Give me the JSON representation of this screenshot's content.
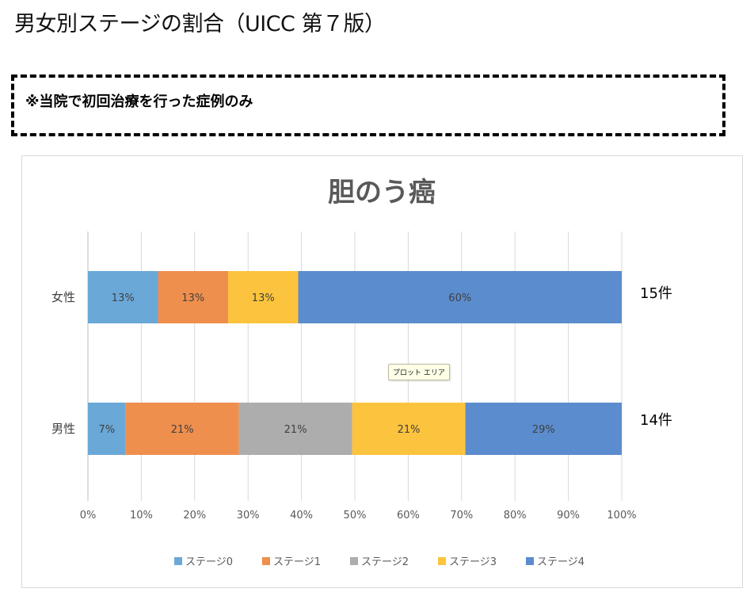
{
  "page": {
    "heading": "男女別ステージの割合（UICC 第７版）",
    "note": "※当院で初回治療を行った症例のみ",
    "tooltip": "プロット エリア"
  },
  "chart_data": {
    "type": "bar",
    "orientation": "horizontal",
    "stacked": "percent",
    "title": "胆のう癌",
    "categories": [
      "女性",
      "男性"
    ],
    "category_totals": [
      "15件",
      "14件"
    ],
    "series": [
      {
        "name": "ステージ0",
        "color": "#6aa8d8",
        "values": [
          13,
          7
        ],
        "labels": [
          "13%",
          "7%"
        ]
      },
      {
        "name": "ステージ1",
        "color": "#ef8f4d",
        "values": [
          13,
          21
        ],
        "labels": [
          "13%",
          "21%"
        ]
      },
      {
        "name": "ステージ2",
        "color": "#adadad",
        "values": [
          0,
          21
        ],
        "labels": [
          "",
          "21%"
        ]
      },
      {
        "name": "ステージ3",
        "color": "#fcc43e",
        "values": [
          13,
          21
        ],
        "labels": [
          "13%",
          "21%"
        ]
      },
      {
        "name": "ステージ4",
        "color": "#5b8ccd",
        "values": [
          60,
          29
        ],
        "labels": [
          "60%",
          "29%"
        ]
      }
    ],
    "xlim": [
      0,
      100
    ],
    "x_ticks": [
      "0%",
      "10%",
      "20%",
      "30%",
      "40%",
      "50%",
      "60%",
      "70%",
      "80%",
      "90%",
      "100%"
    ],
    "grid": true,
    "legend_position": "bottom"
  }
}
